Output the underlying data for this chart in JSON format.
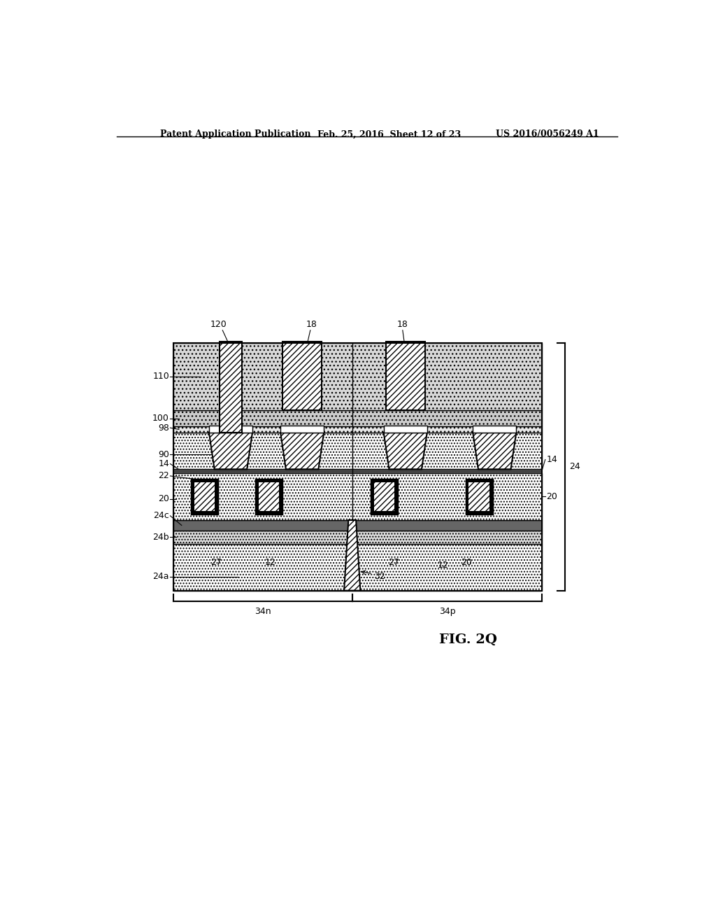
{
  "title_left": "Patent Application Publication",
  "title_mid": "Feb. 25, 2016  Sheet 12 of 23",
  "title_right": "US 2016/0056249 A1",
  "fig_label": "FIG. 2Q",
  "bg_color": "#ffffff"
}
